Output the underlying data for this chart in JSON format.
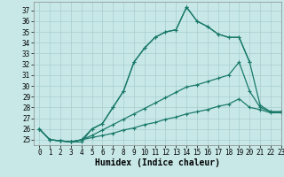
{
  "title": "",
  "xlabel": "Humidex (Indice chaleur)",
  "background_color": "#c8e8e8",
  "grid_color": "#a8cece",
  "line_color": "#1a7a6a",
  "xlim": [
    -0.5,
    23
  ],
  "ylim": [
    24.5,
    37.8
  ],
  "yticks": [
    25,
    26,
    27,
    28,
    29,
    30,
    31,
    32,
    33,
    34,
    35,
    36,
    37
  ],
  "xticks": [
    0,
    1,
    2,
    3,
    4,
    5,
    6,
    7,
    8,
    9,
    10,
    11,
    12,
    13,
    14,
    15,
    16,
    17,
    18,
    19,
    20,
    21,
    22,
    23
  ],
  "series": [
    [
      26.0,
      25.0,
      24.9,
      24.8,
      24.8,
      26.0,
      26.5,
      28.0,
      29.5,
      32.2,
      33.5,
      34.5,
      35.0,
      35.2,
      37.3,
      36.0,
      35.5,
      34.8,
      34.5,
      34.5,
      32.2,
      null,
      null,
      null
    ],
    [
      26.0,
      25.0,
      24.9,
      24.8,
      25.0,
      26.0,
      26.5,
      28.0,
      29.5,
      32.2,
      33.5,
      34.5,
      35.0,
      35.2,
      37.3,
      36.0,
      35.5,
      34.8,
      34.5,
      34.5,
      32.2,
      28.2,
      27.6,
      27.6
    ],
    [
      26.0,
      25.0,
      24.9,
      24.8,
      25.0,
      25.4,
      25.9,
      26.4,
      26.9,
      27.4,
      27.9,
      28.4,
      28.9,
      29.4,
      29.9,
      30.1,
      30.4,
      30.7,
      31.0,
      32.2,
      29.5,
      28.0,
      27.6,
      27.6
    ],
    [
      26.0,
      25.0,
      24.9,
      24.8,
      25.0,
      25.2,
      25.4,
      25.6,
      25.9,
      26.1,
      26.4,
      26.6,
      26.9,
      27.1,
      27.4,
      27.6,
      27.8,
      28.1,
      28.3,
      28.8,
      28.0,
      27.8,
      27.5,
      27.5
    ]
  ],
  "marker": "+",
  "markersize": 3.5,
  "linewidth": 0.9,
  "tick_fontsize": 5.5,
  "xlabel_fontsize": 7,
  "figure_bg": "#c8e8e8"
}
